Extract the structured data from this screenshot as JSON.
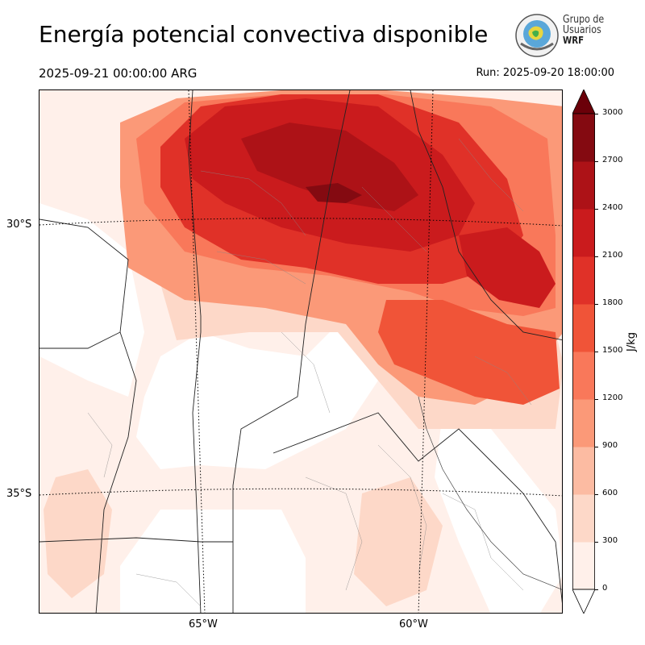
{
  "header": {
    "title": "Energía potencial convectiva disponible",
    "valid_time": "2025-09-21 00:00:00 ARG",
    "run_time": "Run: 2025-09-20 18:00:00"
  },
  "logo": {
    "line1": "Grupo de",
    "line2": "Usuarios",
    "line3": "WRF"
  },
  "map": {
    "lat_labels": [
      "30°S",
      "35°S"
    ],
    "lon_labels": [
      "65°W",
      "60°W"
    ]
  },
  "colorbar": {
    "unit": "J/kg",
    "ticks": [
      "0",
      "300",
      "600",
      "900",
      "1200",
      "1500",
      "1800",
      "2100",
      "2400",
      "2700",
      "3000"
    ],
    "colors": [
      "#fff0ea",
      "#fdd8c8",
      "#fcbba2",
      "#fb9978",
      "#f9785a",
      "#f05438",
      "#e03128",
      "#ca1b1d",
      "#ad1217",
      "#840a11"
    ],
    "extend_color": "#6b0009"
  },
  "colors": {
    "very_low": "#fff0ea",
    "low": "#fdd8c8",
    "medium": "#f9785a",
    "high": "#e03128",
    "very_high": "#ca1b1d",
    "max": "#840a11"
  }
}
